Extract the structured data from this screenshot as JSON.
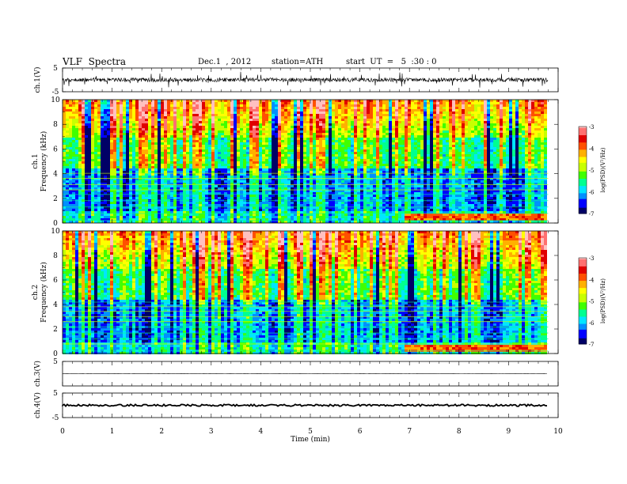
{
  "header": {
    "title": "VLF  Spectra",
    "date": "Dec.1  , 2012",
    "station": "station=ATH",
    "start": "start  UT  =   5  :30 : 0"
  },
  "chart_data": [
    {
      "type": "line",
      "panel": "ch1-waveform",
      "ylabel": "ch.1(V)",
      "yticks": [
        "5",
        "-5"
      ],
      "ylim": [
        -5,
        5
      ],
      "xlim": [
        0,
        10
      ]
    },
    {
      "type": "heatmap",
      "panel": "ch1-spectrogram",
      "ylabel_top": "ch.1",
      "ylabel": "Frequency  (kHz)",
      "yticks": [
        "0",
        "2",
        "4",
        "6",
        "8",
        "10"
      ],
      "ylim": [
        0,
        10
      ],
      "xlim": [
        0,
        10
      ],
      "data_end_min": 9.8,
      "colorbar": {
        "label": "log(PSD)(V²/Hz)",
        "ticks": [
          "-3",
          "-4",
          "-5",
          "-6",
          "-7"
        ],
        "range": [
          -7,
          -3
        ]
      }
    },
    {
      "type": "heatmap",
      "panel": "ch2-spectrogram",
      "ylabel_top": "ch.2",
      "ylabel": "Frequency  (kHz)",
      "yticks": [
        "0",
        "2",
        "4",
        "6",
        "8",
        "10"
      ],
      "ylim": [
        0,
        10
      ],
      "xlim": [
        0,
        10
      ],
      "data_end_min": 9.8,
      "colorbar": {
        "label": "log(PSD)(V²/Hz)",
        "ticks": [
          "-3",
          "-4",
          "-5",
          "-6",
          "-7"
        ],
        "range": [
          -7,
          -3
        ]
      }
    },
    {
      "type": "line",
      "panel": "ch3-waveform",
      "ylabel": "ch.3(V)",
      "yticks": [
        "5"
      ],
      "ylim": [
        -5,
        5
      ],
      "xlim": [
        0,
        10
      ]
    },
    {
      "type": "line",
      "panel": "ch4-waveform",
      "ylabel": "ch.4(V)",
      "yticks": [
        "5",
        "-5"
      ],
      "ylim": [
        -5,
        5
      ],
      "xlim": [
        0,
        10
      ]
    }
  ],
  "xaxis": {
    "label": "Time  (min)",
    "ticks": [
      "0",
      "1",
      "2",
      "3",
      "4",
      "5",
      "6",
      "7",
      "8",
      "9",
      "10"
    ]
  },
  "colors": {
    "scale": [
      "#000066",
      "#0000ff",
      "#0090ff",
      "#00e6ff",
      "#00ff90",
      "#40ff00",
      "#c8ff00",
      "#ffff00",
      "#ffb000",
      "#ff5000",
      "#e00000",
      "#ff7070",
      "#ffc0c0",
      "#ffffff"
    ]
  }
}
